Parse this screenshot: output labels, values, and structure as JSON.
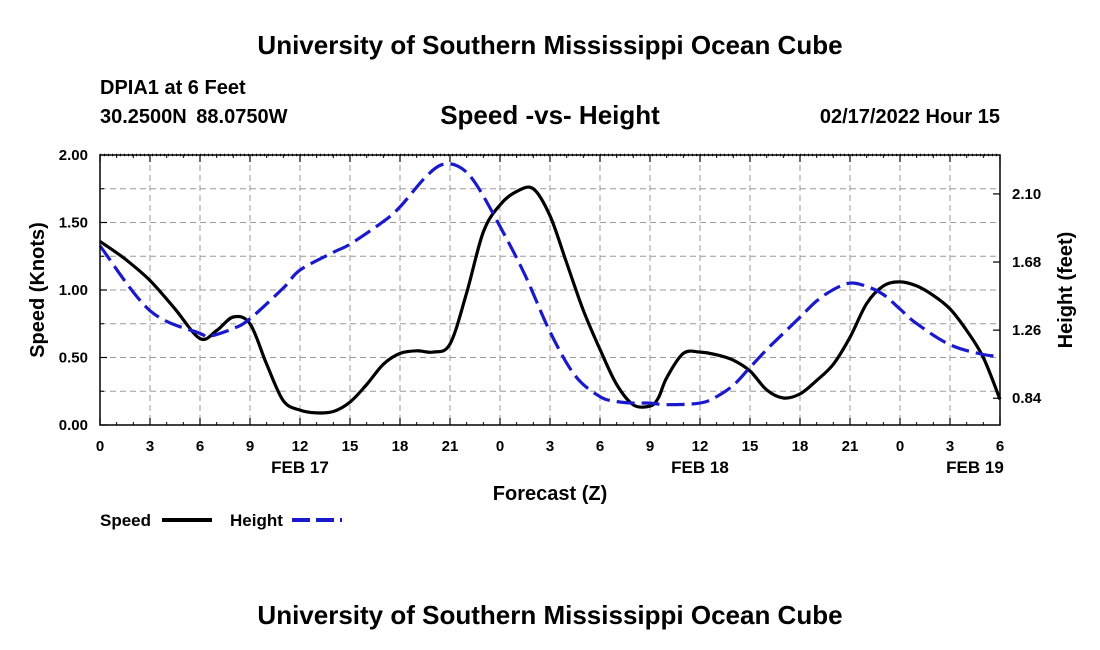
{
  "header": {
    "title": "University of Southern Mississippi Ocean Cube",
    "station_name": "DPIA1 at 6 Feet",
    "station_coords": "30.2500N  88.0750W",
    "date": "02/17/2022 Hour 15"
  },
  "footer": {
    "title": "University of Southern Mississippi Ocean Cube"
  },
  "colors": {
    "speed": "#000000",
    "height": "#1a1acc",
    "grid": "#9a9a9a"
  },
  "chart_data": {
    "type": "line",
    "title": "Speed -vs- Height",
    "xlabel": "Forecast (Z)",
    "ylabel": "Speed (Knots)",
    "y2label": "Height (feet)",
    "x_unit": "forecast hours from FEB 17 00Z",
    "xlim": [
      0,
      54
    ],
    "x_ticks": [
      0,
      3,
      6,
      9,
      12,
      15,
      18,
      21,
      24,
      27,
      30,
      33,
      36,
      39,
      42,
      45,
      48,
      51,
      54
    ],
    "x_tick_labels": [
      "0",
      "3",
      "6",
      "9",
      "12",
      "15",
      "18",
      "21",
      "0",
      "3",
      "6",
      "9",
      "12",
      "15",
      "18",
      "21",
      "0",
      "3",
      "6"
    ],
    "date_labels": [
      {
        "x": 12,
        "label": "FEB 17"
      },
      {
        "x": 36,
        "label": "FEB 18"
      },
      {
        "x": 52.5,
        "label": "FEB 19"
      }
    ],
    "ylim": [
      0,
      2
    ],
    "y_ticks": [
      0,
      0.5,
      1,
      1.5,
      2
    ],
    "y_tick_labels": [
      "0.00",
      "0.50",
      "1.00",
      "1.50",
      "2.00"
    ],
    "y2lim": [
      0.675,
      2.34
    ],
    "y2_ticks": [
      0.84,
      1.26,
      1.68,
      2.1
    ],
    "y2_tick_labels": [
      "0.84",
      "1.26",
      "1.68",
      "2.10"
    ],
    "grid": true,
    "legend_position": "bottom-left",
    "series": [
      {
        "name": "Speed",
        "axis": "left",
        "style": "solid",
        "x": [
          0,
          1.5,
          3,
          4.5,
          6,
          7,
          8,
          9,
          10,
          11,
          12,
          13,
          14,
          15,
          16,
          17,
          18,
          19,
          20,
          21,
          22,
          23,
          24,
          25,
          26,
          27,
          28,
          29,
          30,
          31,
          32,
          33,
          33.5,
          34,
          35,
          36,
          37,
          38,
          39,
          40,
          41,
          42,
          43,
          44,
          45,
          46,
          47,
          48,
          49,
          50,
          51,
          52,
          53,
          54
        ],
        "y": [
          1.36,
          1.23,
          1.07,
          0.86,
          0.64,
          0.7,
          0.8,
          0.75,
          0.45,
          0.18,
          0.11,
          0.09,
          0.1,
          0.17,
          0.3,
          0.45,
          0.53,
          0.55,
          0.54,
          0.6,
          0.98,
          1.43,
          1.63,
          1.73,
          1.75,
          1.55,
          1.2,
          0.85,
          0.56,
          0.3,
          0.15,
          0.14,
          0.2,
          0.35,
          0.53,
          0.54,
          0.52,
          0.48,
          0.4,
          0.26,
          0.2,
          0.23,
          0.33,
          0.45,
          0.65,
          0.9,
          1.03,
          1.06,
          1.03,
          0.96,
          0.86,
          0.7,
          0.5,
          0.19
        ]
      },
      {
        "name": "Height",
        "axis": "right",
        "style": "dashed",
        "x": [
          0,
          3,
          6,
          6.5,
          8,
          9,
          11,
          12,
          14,
          15,
          17,
          18,
          19.5,
          20.5,
          21.5,
          22.5,
          24,
          25.5,
          27,
          28.5,
          30,
          31,
          32,
          33,
          34,
          36,
          37,
          38,
          39,
          40,
          41,
          42,
          43,
          44,
          45,
          46,
          47,
          48,
          49,
          51,
          53,
          54
        ],
        "y": [
          1.78,
          1.38,
          1.24,
          1.22,
          1.27,
          1.33,
          1.52,
          1.63,
          1.74,
          1.79,
          1.93,
          2.02,
          2.2,
          2.28,
          2.27,
          2.17,
          1.9,
          1.6,
          1.25,
          0.98,
          0.85,
          0.82,
          0.81,
          0.81,
          0.8,
          0.81,
          0.85,
          0.92,
          1.03,
          1.14,
          1.24,
          1.34,
          1.44,
          1.51,
          1.55,
          1.53,
          1.48,
          1.39,
          1.3,
          1.17,
          1.11,
          1.1
        ]
      }
    ]
  }
}
